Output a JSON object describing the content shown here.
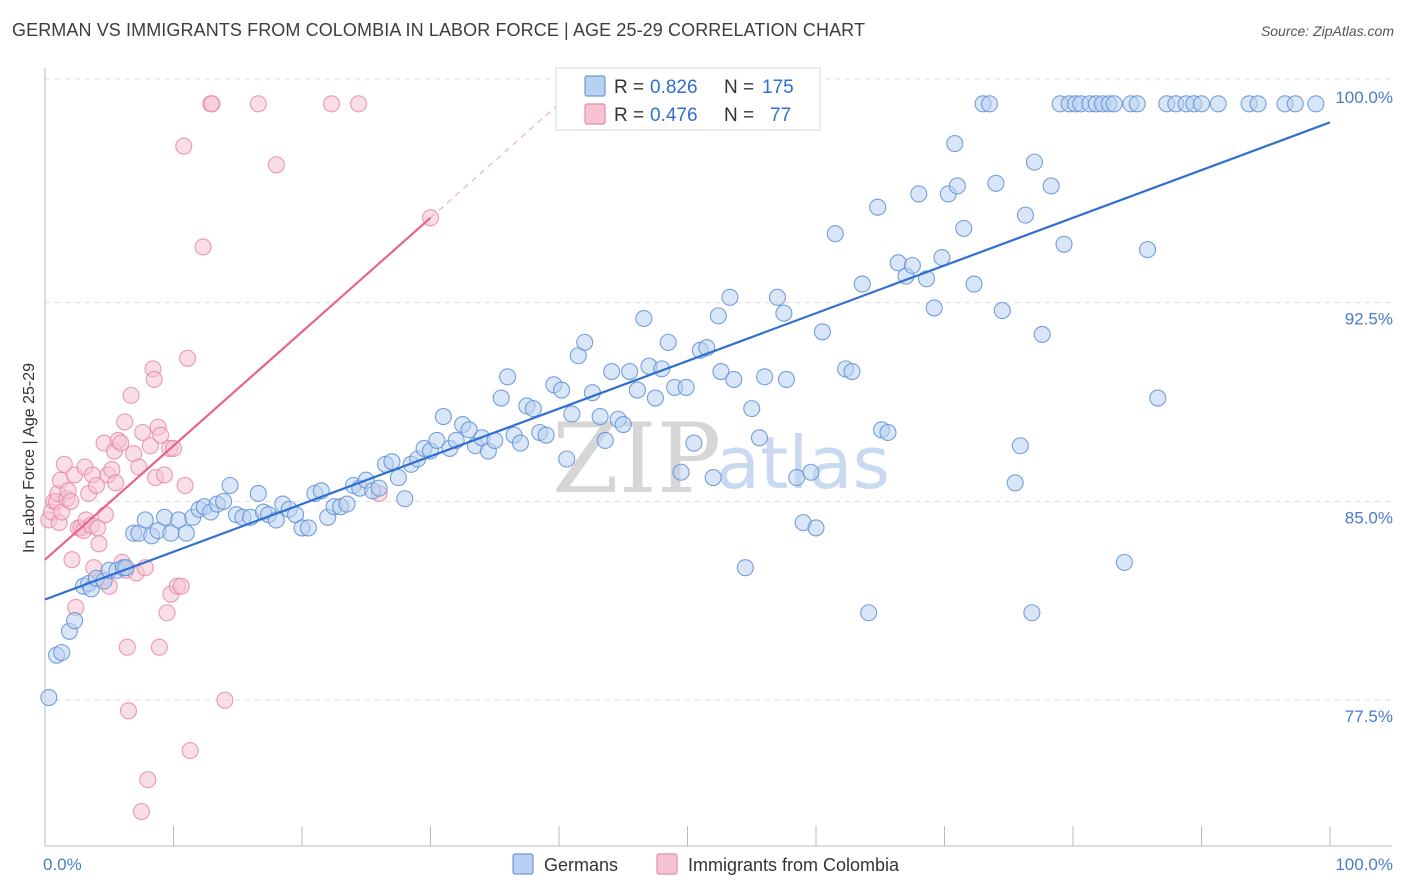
{
  "title": "GERMAN VS IMMIGRANTS FROM COLOMBIA IN LABOR FORCE | AGE 25-29 CORRELATION CHART",
  "source": "Source: ZipAtlas.com",
  "colors": {
    "blue": "#2f6fd0",
    "blue_fill": "#b9d1f1",
    "pink": "#e8638d",
    "pink_fill": "#f6c3d3",
    "grid": "#dddddd",
    "tick": "#4a7cc9"
  },
  "legend": {
    "r_label": "R =",
    "n_label": "N =",
    "items": [
      {
        "series": "Germans",
        "r": "0.826",
        "n": "175"
      },
      {
        "series": "Immigrants from Colombia",
        "r": "0.476",
        "n": "77"
      }
    ]
  },
  "watermark": {
    "zip": "ZIP",
    "atlas": "atlas"
  },
  "chart_data": {
    "type": "scatter",
    "xlabel": "",
    "ylabel": "In Labor Force | Age 25-29",
    "xlim": [
      0,
      100
    ],
    "ylim": [
      72.0,
      101.2
    ],
    "x_ticks": [
      {
        "value": 0,
        "label": "0.0%"
      },
      {
        "value": 100,
        "label": "100.0%"
      }
    ],
    "y_ticks": [
      {
        "value": 77.5,
        "label": "77.5%"
      },
      {
        "value": 85.0,
        "label": "85.0%"
      },
      {
        "value": 92.5,
        "label": "92.5%"
      },
      {
        "value": 100.0,
        "label": "100.0%"
      }
    ],
    "grid": "horizontal dashed",
    "legend_position": "top-center",
    "series": [
      {
        "name": "Germans",
        "color": "#2f6fd0",
        "trend": {
          "x": [
            0,
            100
          ],
          "y": [
            81.3,
            99.3
          ]
        },
        "points": [
          [
            0.3,
            77.6
          ],
          [
            0.9,
            79.2
          ],
          [
            1.3,
            79.3
          ],
          [
            1.9,
            80.1
          ],
          [
            2.3,
            80.5
          ],
          [
            3.0,
            81.8
          ],
          [
            3.4,
            81.9
          ],
          [
            3.6,
            81.7
          ],
          [
            4.0,
            82.1
          ],
          [
            4.6,
            82.0
          ],
          [
            5.0,
            82.4
          ],
          [
            5.6,
            82.4
          ],
          [
            6.1,
            82.5
          ],
          [
            6.3,
            82.5
          ],
          [
            6.9,
            83.8
          ],
          [
            7.3,
            83.8
          ],
          [
            7.8,
            84.3
          ],
          [
            8.3,
            83.7
          ],
          [
            8.8,
            83.9
          ],
          [
            9.3,
            84.4
          ],
          [
            9.8,
            83.8
          ],
          [
            10.4,
            84.3
          ],
          [
            11.0,
            83.8
          ],
          [
            11.5,
            84.4
          ],
          [
            12.0,
            84.7
          ],
          [
            12.4,
            84.8
          ],
          [
            12.9,
            84.6
          ],
          [
            13.4,
            84.9
          ],
          [
            13.9,
            85.0
          ],
          [
            14.4,
            85.6
          ],
          [
            14.9,
            84.5
          ],
          [
            15.4,
            84.4
          ],
          [
            16.0,
            84.4
          ],
          [
            16.6,
            85.3
          ],
          [
            17.0,
            84.6
          ],
          [
            17.4,
            84.5
          ],
          [
            18.0,
            84.3
          ],
          [
            18.5,
            84.9
          ],
          [
            19.0,
            84.7
          ],
          [
            19.5,
            84.5
          ],
          [
            20.0,
            84.0
          ],
          [
            20.5,
            84.0
          ],
          [
            21.0,
            85.3
          ],
          [
            21.5,
            85.4
          ],
          [
            22.0,
            84.4
          ],
          [
            22.5,
            84.8
          ],
          [
            23.0,
            84.8
          ],
          [
            23.5,
            84.9
          ],
          [
            24.0,
            85.6
          ],
          [
            24.5,
            85.5
          ],
          [
            25.0,
            85.8
          ],
          [
            25.5,
            85.4
          ],
          [
            26.0,
            85.5
          ],
          [
            26.5,
            86.4
          ],
          [
            27.0,
            86.5
          ],
          [
            27.5,
            85.9
          ],
          [
            28.0,
            85.1
          ],
          [
            28.5,
            86.4
          ],
          [
            29.0,
            86.6
          ],
          [
            29.5,
            87.0
          ],
          [
            30.0,
            86.9
          ],
          [
            30.5,
            87.3
          ],
          [
            31.0,
            88.2
          ],
          [
            31.5,
            87.0
          ],
          [
            32.0,
            87.3
          ],
          [
            32.5,
            87.9
          ],
          [
            33.0,
            87.7
          ],
          [
            33.5,
            87.1
          ],
          [
            34.0,
            87.4
          ],
          [
            34.5,
            86.9
          ],
          [
            35.0,
            87.3
          ],
          [
            35.5,
            88.9
          ],
          [
            36.0,
            89.7
          ],
          [
            36.5,
            87.5
          ],
          [
            37.0,
            87.2
          ],
          [
            37.5,
            88.6
          ],
          [
            38.0,
            88.5
          ],
          [
            38.5,
            87.6
          ],
          [
            39.0,
            87.5
          ],
          [
            39.6,
            89.4
          ],
          [
            40.2,
            89.2
          ],
          [
            40.6,
            86.6
          ],
          [
            41.0,
            88.3
          ],
          [
            41.5,
            90.5
          ],
          [
            42.0,
            91.0
          ],
          [
            42.6,
            89.1
          ],
          [
            43.2,
            88.2
          ],
          [
            43.6,
            87.3
          ],
          [
            44.1,
            89.9
          ],
          [
            44.6,
            88.1
          ],
          [
            45.0,
            87.9
          ],
          [
            45.5,
            89.9
          ],
          [
            46.1,
            89.2
          ],
          [
            46.6,
            91.9
          ],
          [
            47.0,
            90.1
          ],
          [
            47.5,
            88.9
          ],
          [
            48.0,
            90.0
          ],
          [
            48.5,
            91.0
          ],
          [
            49.0,
            89.3
          ],
          [
            49.5,
            86.1
          ],
          [
            49.9,
            89.3
          ],
          [
            50.5,
            87.2
          ],
          [
            51.0,
            90.7
          ],
          [
            51.5,
            90.8
          ],
          [
            52.0,
            85.9
          ],
          [
            52.4,
            92.0
          ],
          [
            52.6,
            89.9
          ],
          [
            53.3,
            92.7
          ],
          [
            53.6,
            89.6
          ],
          [
            54.5,
            82.5
          ],
          [
            55.0,
            88.5
          ],
          [
            55.6,
            87.4
          ],
          [
            56.0,
            89.7
          ],
          [
            57.0,
            92.7
          ],
          [
            57.5,
            92.1
          ],
          [
            57.7,
            89.6
          ],
          [
            58.5,
            85.9
          ],
          [
            59.0,
            84.2
          ],
          [
            59.6,
            86.1
          ],
          [
            60.0,
            84.0
          ],
          [
            60.5,
            91.4
          ],
          [
            61.5,
            95.1
          ],
          [
            62.3,
            90.0
          ],
          [
            62.8,
            89.9
          ],
          [
            63.6,
            93.2
          ],
          [
            64.1,
            80.8
          ],
          [
            64.8,
            96.1
          ],
          [
            65.1,
            87.7
          ],
          [
            65.6,
            87.6
          ],
          [
            66.4,
            94.0
          ],
          [
            67.0,
            93.5
          ],
          [
            67.5,
            93.9
          ],
          [
            68.0,
            96.6
          ],
          [
            68.6,
            93.4
          ],
          [
            69.2,
            92.3
          ],
          [
            69.8,
            94.2
          ],
          [
            70.3,
            96.6
          ],
          [
            70.8,
            98.5
          ],
          [
            71.0,
            96.9
          ],
          [
            71.5,
            95.3
          ],
          [
            72.3,
            93.2
          ],
          [
            73.0,
            100.0
          ],
          [
            73.5,
            100.0
          ],
          [
            74.0,
            97.0
          ],
          [
            74.5,
            92.2
          ],
          [
            75.5,
            85.7
          ],
          [
            75.9,
            87.1
          ],
          [
            76.3,
            95.8
          ],
          [
            76.8,
            80.8
          ],
          [
            77.0,
            97.8
          ],
          [
            77.6,
            91.3
          ],
          [
            78.3,
            96.9
          ],
          [
            79.0,
            100.0
          ],
          [
            79.3,
            94.7
          ],
          [
            79.7,
            100.0
          ],
          [
            80.2,
            100.0
          ],
          [
            80.6,
            100.0
          ],
          [
            81.3,
            100.0
          ],
          [
            81.8,
            100.0
          ],
          [
            82.3,
            100.0
          ],
          [
            82.8,
            100.0
          ],
          [
            83.2,
            100.0
          ],
          [
            84.0,
            82.7
          ],
          [
            84.5,
            100.0
          ],
          [
            85.0,
            100.0
          ],
          [
            85.8,
            94.5
          ],
          [
            86.6,
            88.9
          ],
          [
            87.3,
            100.0
          ],
          [
            88.0,
            100.0
          ],
          [
            88.8,
            100.0
          ],
          [
            89.4,
            100.0
          ],
          [
            90.0,
            100.0
          ],
          [
            91.3,
            100.0
          ],
          [
            93.7,
            100.0
          ],
          [
            94.4,
            100.0
          ],
          [
            96.5,
            100.0
          ],
          [
            97.3,
            100.0
          ],
          [
            98.9,
            100.0
          ]
        ]
      },
      {
        "name": "Immigrants from Colombia",
        "color": "#e8638d",
        "trend": {
          "x": [
            0,
            30
          ],
          "y": [
            82.8,
            95.7
          ]
        },
        "trend_extension": {
          "x": [
            30,
            40
          ],
          "y": [
            95.7,
            100.0
          ]
        },
        "points": [
          [
            0.3,
            84.3
          ],
          [
            0.5,
            84.6
          ],
          [
            0.7,
            85.0
          ],
          [
            0.9,
            85.0
          ],
          [
            1.0,
            85.3
          ],
          [
            1.1,
            84.2
          ],
          [
            1.2,
            85.8
          ],
          [
            1.3,
            84.6
          ],
          [
            1.5,
            86.4
          ],
          [
            1.7,
            85.1
          ],
          [
            1.8,
            85.4
          ],
          [
            2.0,
            85.0
          ],
          [
            2.1,
            82.8
          ],
          [
            2.3,
            86.0
          ],
          [
            2.4,
            81.0
          ],
          [
            2.6,
            84.0
          ],
          [
            2.8,
            84.0
          ],
          [
            3.0,
            83.9
          ],
          [
            3.1,
            86.3
          ],
          [
            3.2,
            84.3
          ],
          [
            3.4,
            85.3
          ],
          [
            3.6,
            84.1
          ],
          [
            3.7,
            86.0
          ],
          [
            3.8,
            82.5
          ],
          [
            4.0,
            85.6
          ],
          [
            4.1,
            84.0
          ],
          [
            4.2,
            83.4
          ],
          [
            4.4,
            82.1
          ],
          [
            4.6,
            87.2
          ],
          [
            4.7,
            84.5
          ],
          [
            4.9,
            86.0
          ],
          [
            5.0,
            81.8
          ],
          [
            5.2,
            86.2
          ],
          [
            5.4,
            86.9
          ],
          [
            5.5,
            85.7
          ],
          [
            5.7,
            87.3
          ],
          [
            5.9,
            87.2
          ],
          [
            6.0,
            82.7
          ],
          [
            6.2,
            88.0
          ],
          [
            6.3,
            82.4
          ],
          [
            6.4,
            79.5
          ],
          [
            6.5,
            77.1
          ],
          [
            6.7,
            89.0
          ],
          [
            6.9,
            86.8
          ],
          [
            7.1,
            82.3
          ],
          [
            7.3,
            86.3
          ],
          [
            7.5,
            73.3
          ],
          [
            7.6,
            87.6
          ],
          [
            7.8,
            82.5
          ],
          [
            8.0,
            74.5
          ],
          [
            8.2,
            87.1
          ],
          [
            8.4,
            90.0
          ],
          [
            8.5,
            89.6
          ],
          [
            8.6,
            85.9
          ],
          [
            8.8,
            87.8
          ],
          [
            8.9,
            79.5
          ],
          [
            9.0,
            87.5
          ],
          [
            9.3,
            86.0
          ],
          [
            9.5,
            80.8
          ],
          [
            9.7,
            87.0
          ],
          [
            9.8,
            81.5
          ],
          [
            10.0,
            87.0
          ],
          [
            10.3,
            81.8
          ],
          [
            10.6,
            81.8
          ],
          [
            10.8,
            98.4
          ],
          [
            10.9,
            85.6
          ],
          [
            11.1,
            90.4
          ],
          [
            11.3,
            75.6
          ],
          [
            12.3,
            94.6
          ],
          [
            12.9,
            100.0
          ],
          [
            13.0,
            100.0
          ],
          [
            14.0,
            77.5
          ],
          [
            16.6,
            100.0
          ],
          [
            18.0,
            97.7
          ],
          [
            22.3,
            100.0
          ],
          [
            24.4,
            100.0
          ],
          [
            26.0,
            85.3
          ],
          [
            30.0,
            95.7
          ]
        ]
      }
    ]
  }
}
